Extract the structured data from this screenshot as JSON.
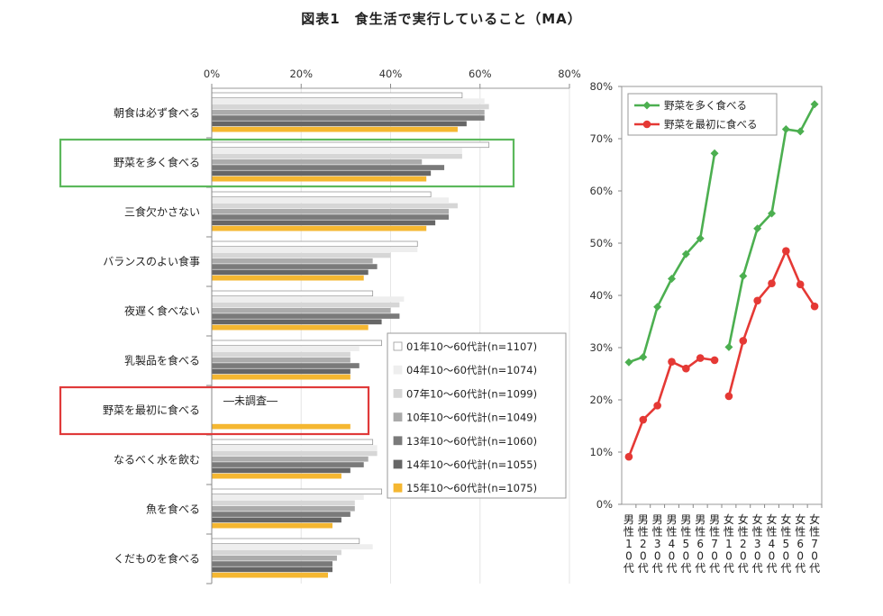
{
  "title": "図表1　食生活で実行していること（MA）",
  "not_surveyed_note": "―未調査―",
  "chart_data": [
    {
      "type": "bar",
      "orientation": "horizontal",
      "xlim": [
        0,
        80
      ],
      "xticks": [
        "0%",
        "20%",
        "40%",
        "60%",
        "80%"
      ],
      "categories": [
        "朝食は必ず食べる",
        "野菜を多く食べる",
        "三食欠かさない",
        "バランスのよい食事",
        "夜遅く食べない",
        "乳製品を食べる",
        "野菜を最初に食べる",
        "なるべく水を飲む",
        "魚を食べる",
        "くだものを食べる"
      ],
      "highlight": [
        {
          "category": "野菜を多く食べる",
          "color": "#5cb85c"
        },
        {
          "category": "野菜を最初に食べる",
          "color": "#e03a3a"
        }
      ],
      "legend_position": "bottom-right",
      "series": [
        {
          "name": "01年10～60代計(n=1107)",
          "color": "#ffffff",
          "stroke": "#999999",
          "values": [
            56,
            62,
            49,
            46,
            36,
            38,
            null,
            36,
            38,
            33
          ]
        },
        {
          "name": "04年10～60代計(n=1074)",
          "color": "#eeeeee",
          "values": [
            61,
            56,
            53,
            46,
            43,
            33,
            null,
            37,
            34,
            36
          ]
        },
        {
          "name": "07年10～60代計(n=1099)",
          "color": "#d6d6d6",
          "values": [
            62,
            56,
            55,
            40,
            42,
            31,
            null,
            37,
            32,
            29
          ]
        },
        {
          "name": "10年10～60代計(n=1049)",
          "color": "#ababab",
          "values": [
            61,
            47,
            53,
            36,
            40,
            31,
            null,
            35,
            32,
            28
          ]
        },
        {
          "name": "13年10～60代計(n=1060)",
          "color": "#7a7a7a",
          "values": [
            61,
            52,
            53,
            37,
            42,
            33,
            null,
            34,
            31,
            27
          ]
        },
        {
          "name": "14年10～60代計(n=1055)",
          "color": "#666666",
          "values": [
            57,
            49,
            50,
            35,
            38,
            31,
            null,
            31,
            29,
            27
          ]
        },
        {
          "name": "15年10～60代計(n=1075)",
          "color": "#f5b731",
          "values": [
            55,
            48,
            48,
            34,
            35,
            31,
            31,
            29,
            27,
            26
          ]
        }
      ]
    },
    {
      "type": "line",
      "ylim": [
        0,
        80
      ],
      "yticks": [
        "0%",
        "10%",
        "20%",
        "30%",
        "40%",
        "50%",
        "60%",
        "70%",
        "80%"
      ],
      "categories": [
        "男性10代",
        "男性20代",
        "男性30代",
        "男性40代",
        "男性50代",
        "男性60代",
        "男性70代",
        "女性10代",
        "女性20代",
        "女性30代",
        "女性40代",
        "女性50代",
        "女性60代",
        "女性70代"
      ],
      "category_labels": [
        [
          "男",
          "性",
          "1",
          "0",
          "代"
        ],
        [
          "男",
          "性",
          "2",
          "0",
          "代"
        ],
        [
          "男",
          "性",
          "3",
          "0",
          "代"
        ],
        [
          "男",
          "性",
          "4",
          "0",
          "代"
        ],
        [
          "男",
          "性",
          "5",
          "0",
          "代"
        ],
        [
          "男",
          "性",
          "6",
          "0",
          "代"
        ],
        [
          "男",
          "性",
          "7",
          "0",
          "代"
        ],
        [
          "女",
          "性",
          "1",
          "0",
          "代"
        ],
        [
          "女",
          "性",
          "2",
          "0",
          "代"
        ],
        [
          "女",
          "性",
          "3",
          "0",
          "代"
        ],
        [
          "女",
          "性",
          "4",
          "0",
          "代"
        ],
        [
          "女",
          "性",
          "5",
          "0",
          "代"
        ],
        [
          "女",
          "性",
          "6",
          "0",
          "代"
        ],
        [
          "女",
          "性",
          "7",
          "0",
          "代"
        ]
      ],
      "legend_position": "top-left",
      "series": [
        {
          "name": "野菜を多く食べる",
          "color": "#4caf50",
          "marker": "diamond",
          "values": [
            27.2,
            28.2,
            37.8,
            43.2,
            47.9,
            50.9,
            67.2,
            30.1,
            43.7,
            52.8,
            55.7,
            71.8,
            71.4,
            76.6
          ]
        },
        {
          "name": "野菜を最初に食べる",
          "color": "#e53935",
          "marker": "circle",
          "values": [
            9.1,
            16.2,
            18.9,
            27.3,
            26.0,
            28.0,
            27.6,
            20.7,
            31.3,
            39.0,
            42.3,
            48.5,
            42.1,
            37.9
          ]
        }
      ]
    }
  ]
}
